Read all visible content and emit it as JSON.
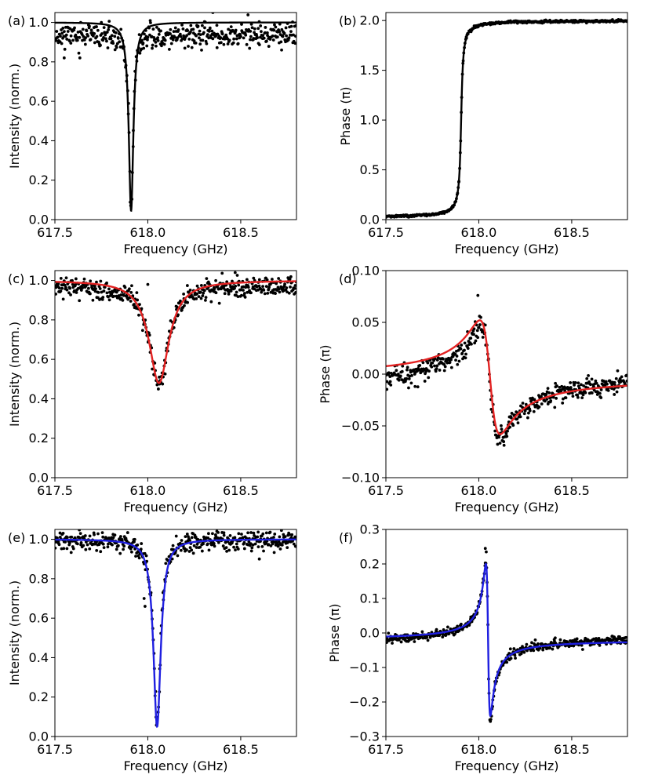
{
  "figure": {
    "colors": {
      "data_points": "#000000",
      "fit_c_d": "#e32222",
      "fit_e_f": "#1f1fe0",
      "fit_a_b": "#000000"
    }
  },
  "chart_data": [
    {
      "id": "a",
      "panel_label": "(a)",
      "type": "scatter",
      "xlabel": "Frequency (GHz)",
      "ylabel": "Intensity (norm.)",
      "xlim": [
        617.5,
        618.8
      ],
      "ylim": [
        0.0,
        1.05
      ],
      "xticks": [
        617.5,
        618.0,
        618.5
      ],
      "xtick_labels": [
        "617.5",
        "618.0",
        "618.5"
      ],
      "yticks": [
        0.0,
        0.2,
        0.4,
        0.6,
        0.8,
        1.0
      ],
      "ytick_labels": [
        "0.0",
        "0.2",
        "0.4",
        "0.6",
        "0.8",
        "1.0"
      ],
      "fit": {
        "model": "lorentzian_dip",
        "center": 617.91,
        "hwhm": 0.015,
        "depth": 0.955,
        "baseline": 1.0,
        "color": "#000000"
      },
      "scatter": {
        "model": "lorentzian_dip",
        "center": 617.91,
        "hwhm": 0.012,
        "depth": 0.95,
        "baseline": 0.935,
        "noise": 0.03,
        "n_points": 450,
        "seed": 11
      },
      "annotations": [
        {
          "x": 617.55,
          "y": 0.82
        },
        {
          "x": 618.72,
          "y": 0.86
        },
        {
          "x": 618.35,
          "y": 1.05
        }
      ]
    },
    {
      "id": "b",
      "panel_label": "(b)",
      "type": "scatter",
      "xlabel": "Frequency (GHz)",
      "ylabel": "Phase (π)",
      "xlim": [
        617.5,
        618.8
      ],
      "ylim": [
        0.0,
        2.08
      ],
      "xticks": [
        617.5,
        618.0,
        618.5
      ],
      "xtick_labels": [
        "617.5",
        "618.0",
        "618.5"
      ],
      "yticks": [
        0.0,
        0.5,
        1.0,
        1.5,
        2.0
      ],
      "ytick_labels": [
        "0.0",
        "0.5",
        "1.0",
        "1.5",
        "2.0"
      ],
      "fit": {
        "model": "phase_step",
        "center": 617.905,
        "width": 0.008,
        "low": 0.02,
        "high": 2.0,
        "color": "#000000"
      },
      "scatter": {
        "model": "phase_step",
        "center": 617.905,
        "width": 0.008,
        "low": 0.02,
        "high": 2.0,
        "noise": 0.006,
        "n_points": 450,
        "seed": 23
      },
      "annotations": []
    },
    {
      "id": "c",
      "panel_label": "(c)",
      "type": "scatter",
      "xlabel": "Frequency (GHz)",
      "ylabel": "Intensity (norm.)",
      "xlim": [
        617.5,
        618.8
      ],
      "ylim": [
        0.0,
        1.05
      ],
      "xticks": [
        617.5,
        618.0,
        618.5
      ],
      "xtick_labels": [
        "617.5",
        "618.0",
        "618.5"
      ],
      "yticks": [
        0.0,
        0.2,
        0.4,
        0.6,
        0.8,
        1.0
      ],
      "ytick_labels": [
        "0.0",
        "0.2",
        "0.4",
        "0.6",
        "0.8",
        "1.0"
      ],
      "fit": {
        "model": "lorentzian_dip",
        "center": 618.06,
        "hwhm": 0.065,
        "depth": 0.52,
        "baseline": 1.0,
        "color": "#e32222"
      },
      "scatter": {
        "model": "lorentzian_dip",
        "center": 618.06,
        "hwhm": 0.06,
        "depth": 0.5,
        "baseline": 0.975,
        "noise": 0.025,
        "n_points": 450,
        "seed": 37
      },
      "annotations": [
        {
          "x": 618.0,
          "y": 0.98
        },
        {
          "x": 618.47,
          "y": 1.04
        }
      ]
    },
    {
      "id": "d",
      "panel_label": "(d)",
      "type": "scatter",
      "xlabel": "Frequency (GHz)",
      "ylabel": "Phase (π)",
      "xlim": [
        617.5,
        618.8
      ],
      "ylim": [
        -0.1,
        0.1
      ],
      "xticks": [
        617.5,
        618.0,
        618.5
      ],
      "xtick_labels": [
        "617.5",
        "618.0",
        "618.5"
      ],
      "yticks": [
        -0.1,
        -0.05,
        0.0,
        0.05,
        0.1
      ],
      "ytick_labels": [
        "−0.10",
        "−0.05",
        "0.00",
        "0.05",
        "0.10"
      ],
      "fit": {
        "model": "dispersive",
        "center": 618.06,
        "hwhm": 0.055,
        "amp": 0.11,
        "offset": -0.003,
        "slope": 0.0,
        "color": "#e32222"
      },
      "scatter": {
        "model": "dispersive",
        "center": 618.06,
        "hwhm": 0.05,
        "amp": 0.11,
        "offset": -0.008,
        "slope": 0.01,
        "noise": 0.005,
        "n_points": 450,
        "seed": 53
      },
      "annotations": [
        {
          "x": 617.995,
          "y": 0.076
        }
      ]
    },
    {
      "id": "e",
      "panel_label": "(e)",
      "type": "scatter",
      "xlabel": "Frequency (GHz)",
      "ylabel": "Intensity (norm.)",
      "xlim": [
        617.5,
        618.8
      ],
      "ylim": [
        0.0,
        1.05
      ],
      "xticks": [
        617.5,
        618.0,
        618.5
      ],
      "xtick_labels": [
        "617.5",
        "618.0",
        "618.5"
      ],
      "yticks": [
        0.0,
        0.2,
        0.4,
        0.6,
        0.8,
        1.0
      ],
      "ytick_labels": [
        "0.0",
        "0.2",
        "0.4",
        "0.6",
        "0.8",
        "1.0"
      ],
      "fit": {
        "model": "lorentzian_dip",
        "center": 618.05,
        "hwhm": 0.024,
        "depth": 0.95,
        "baseline": 1.0,
        "color": "#1f1fe0"
      },
      "scatter": {
        "model": "lorentzian_dip",
        "center": 618.05,
        "hwhm": 0.022,
        "depth": 0.95,
        "baseline": 0.995,
        "noise": 0.025,
        "n_points": 450,
        "seed": 71
      },
      "annotations": [
        {
          "x": 617.98,
          "y": 0.7
        },
        {
          "x": 617.985,
          "y": 0.66
        },
        {
          "x": 618.6,
          "y": 0.9
        }
      ]
    },
    {
      "id": "f",
      "panel_label": "(f)",
      "type": "scatter",
      "xlabel": "Frequency (GHz)",
      "ylabel": "Phase (π)",
      "xlim": [
        617.5,
        618.8
      ],
      "ylim": [
        -0.3,
        0.3
      ],
      "xticks": [
        617.5,
        618.0,
        618.5
      ],
      "xtick_labels": [
        "617.5",
        "618.0",
        "618.5"
      ],
      "yticks": [
        -0.3,
        -0.2,
        -0.1,
        0.0,
        0.1,
        0.2,
        0.3
      ],
      "ytick_labels": [
        "−0.3",
        "−0.2",
        "−0.1",
        "0.0",
        "0.1",
        "0.2",
        "0.3"
      ],
      "fit": {
        "model": "dispersive",
        "center": 618.05,
        "hwhm": 0.012,
        "amp": 0.44,
        "offset": -0.02,
        "slope": 0.0,
        "color": "#1f1fe0"
      },
      "scatter": {
        "model": "dispersive",
        "center": 618.05,
        "hwhm": 0.012,
        "amp": 0.46,
        "offset": -0.022,
        "slope": 0.012,
        "noise": 0.006,
        "n_points": 450,
        "seed": 97
      },
      "annotations": [
        {
          "x": 618.035,
          "y": 0.245
        },
        {
          "x": 618.04,
          "y": 0.235
        }
      ]
    }
  ]
}
